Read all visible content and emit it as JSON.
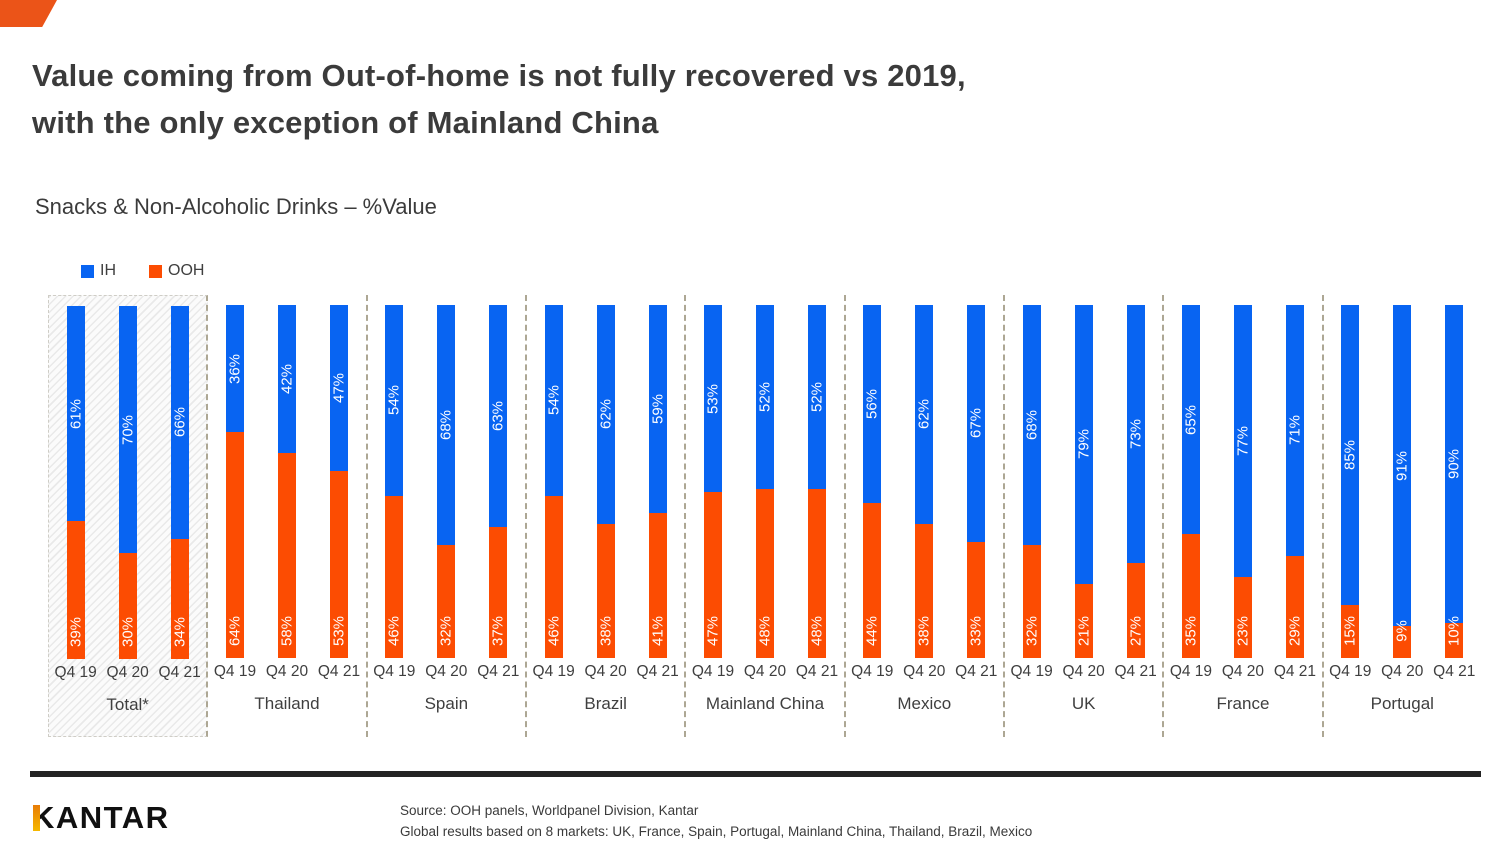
{
  "header": {
    "title_line1": "Value coming from Out-of-home is not fully recovered vs 2019,",
    "title_line2": "with the only exception of Mainland China",
    "subtitle": "Snacks & Non-Alcoholic Drinks – %Value"
  },
  "legend": {
    "items": [
      {
        "label": "IH",
        "color": "#0864f2"
      },
      {
        "label": "OOH",
        "color": "#fc4c02"
      }
    ]
  },
  "chart_data": {
    "type": "bar",
    "stacked": true,
    "unit": "%",
    "ylim": [
      0,
      100
    ],
    "grid": false,
    "legend_position": "top-left",
    "quarters": [
      "Q4 19",
      "Q4 20",
      "Q4 21"
    ],
    "series_names": [
      "IH",
      "OOH"
    ],
    "colors": {
      "ih": "#0864f2",
      "ooh": "#fc4c02"
    },
    "groups": [
      {
        "name": "Total*",
        "highlight": true,
        "ih": [
          61,
          70,
          66
        ],
        "ooh": [
          39,
          30,
          34
        ]
      },
      {
        "name": "Thailand",
        "highlight": false,
        "ih": [
          36,
          42,
          47
        ],
        "ooh": [
          64,
          58,
          53
        ]
      },
      {
        "name": "Spain",
        "highlight": false,
        "ih": [
          54,
          68,
          63
        ],
        "ooh": [
          46,
          32,
          37
        ]
      },
      {
        "name": "Brazil",
        "highlight": false,
        "ih": [
          54,
          62,
          59
        ],
        "ooh": [
          46,
          38,
          41
        ]
      },
      {
        "name": "Mainland China",
        "highlight": false,
        "ih": [
          53,
          52,
          52
        ],
        "ooh": [
          47,
          48,
          48
        ]
      },
      {
        "name": "Mexico",
        "highlight": false,
        "ih": [
          56,
          62,
          67
        ],
        "ooh": [
          44,
          38,
          33
        ]
      },
      {
        "name": "UK",
        "highlight": false,
        "ih": [
          68,
          79,
          73
        ],
        "ooh": [
          32,
          21,
          27
        ]
      },
      {
        "name": "France",
        "highlight": false,
        "ih": [
          65,
          77,
          71
        ],
        "ooh": [
          35,
          23,
          29
        ]
      },
      {
        "name": "Portugal",
        "highlight": false,
        "ih": [
          85,
          91,
          90
        ],
        "ooh": [
          15,
          9,
          10
        ]
      }
    ]
  },
  "branding": {
    "corner_color": "#eb5418",
    "logo_text": "KANTAR"
  },
  "footer": {
    "source_line1": "Source: OOH panels, Worldpanel Division, Kantar",
    "source_line2": "Global results based on 8 markets: UK, France, Spain, Portugal, Mainland China, Thailand, Brazil, Mexico"
  }
}
